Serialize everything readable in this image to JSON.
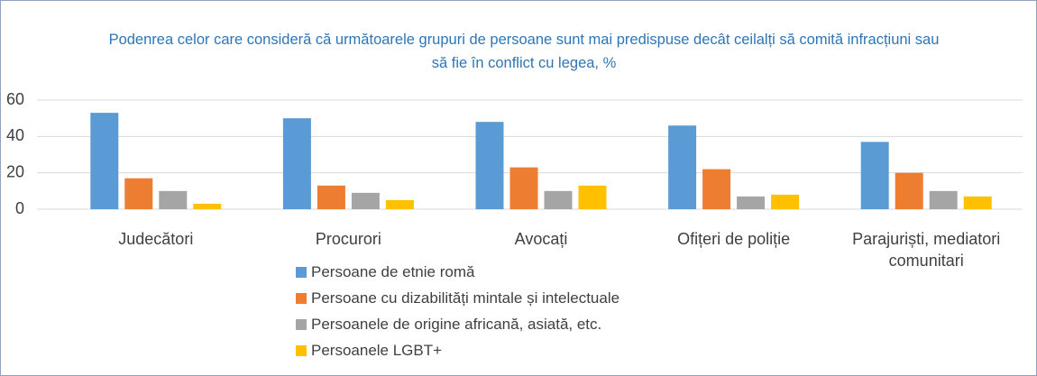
{
  "chart_data": {
    "type": "bar",
    "title": "Podenrea celor care consideră că următoarele grupuri de persoane sunt mai predispuse decât ceilalți să comită infracțiuni sau să fie în conflict cu legea, %",
    "categories": [
      "Judecători",
      "Procurori",
      "Avocați",
      "Ofițeri de poliție",
      "Parajuriști, mediatori comunitari"
    ],
    "series": [
      {
        "name": "Persoane de etnie romă",
        "color": "#5b9bd5",
        "values": [
          53,
          50,
          48,
          46,
          37
        ]
      },
      {
        "name": "Persoane cu dizabilități mintale și intelectuale",
        "color": "#ed7d31",
        "values": [
          17,
          13,
          23,
          22,
          20
        ]
      },
      {
        "name": "Persoanele de origine africană, asiată, etc.",
        "color": "#a5a5a5",
        "values": [
          10,
          9,
          10,
          7,
          10
        ]
      },
      {
        "name": "Persoanele LGBT+",
        "color": "#ffc000",
        "values": [
          3,
          5,
          13,
          8,
          7
        ]
      }
    ],
    "ylim": [
      0,
      60
    ],
    "yticks": [
      0,
      20,
      40,
      60
    ],
    "grid": true,
    "legend": "bottom"
  }
}
